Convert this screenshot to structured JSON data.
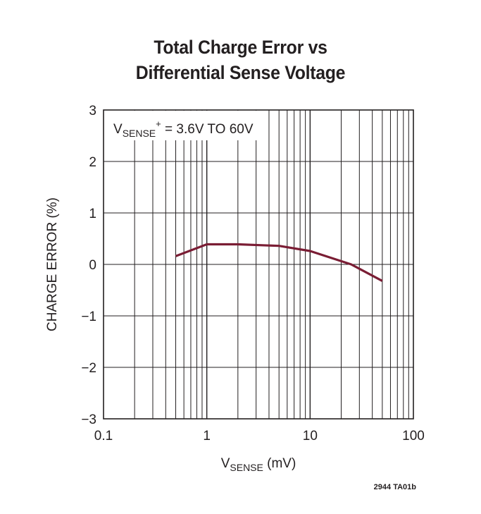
{
  "chart_data": {
    "type": "line",
    "title_line1": "Total Charge Error vs",
    "title_line2": "Differential Sense Voltage",
    "xlabel_main": "V",
    "xlabel_sub": "SENSE",
    "xlabel_unit": " (mV)",
    "ylabel": "CHARGE ERROR (%)",
    "x_scale": "log",
    "xlim": [
      0.1,
      100
    ],
    "ylim": [
      -3,
      3
    ],
    "x_ticks": [
      {
        "value": 0.1,
        "label": "0.1"
      },
      {
        "value": 1,
        "label": "1"
      },
      {
        "value": 10,
        "label": "10"
      },
      {
        "value": 100,
        "label": "100"
      }
    ],
    "y_ticks": [
      {
        "value": 3,
        "label": "3"
      },
      {
        "value": 2,
        "label": "2"
      },
      {
        "value": 1,
        "label": "1"
      },
      {
        "value": 0,
        "label": "0"
      },
      {
        "value": -1,
        "label": "−1"
      },
      {
        "value": -2,
        "label": "−2"
      },
      {
        "value": -3,
        "label": "−3"
      }
    ],
    "grid": true,
    "annotation": {
      "main": "V",
      "sub": "SENSE",
      "sup": "+",
      "rest": " = 3.6V TO 60V"
    },
    "series": [
      {
        "x": [
          0.5,
          1,
          2,
          5,
          10,
          25,
          50
        ],
        "y": [
          0.16,
          0.39,
          0.39,
          0.36,
          0.26,
          0.0,
          -0.32
        ],
        "color": "#7a1d34"
      }
    ],
    "figure_code": "2944 TA01b"
  }
}
